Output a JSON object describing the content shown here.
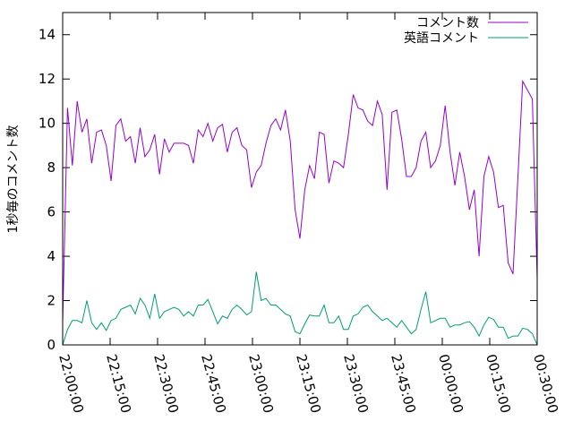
{
  "chart_data": {
    "type": "line",
    "title": "",
    "xlabel": "",
    "ylabel": "1秒毎のコメント数",
    "ylim": [
      0,
      15
    ],
    "yticks": [
      "0",
      "2",
      "4",
      "6",
      "8",
      "10",
      "12",
      "14"
    ],
    "x_range": [
      "22:00:00",
      "00:30:00"
    ],
    "x_sample_interval": "00:01:00",
    "xticks": [
      "22:00:00",
      "22:15:00",
      "22:30:00",
      "22:45:00",
      "23:00:00",
      "23:15:00",
      "23:30:00",
      "23:45:00",
      "00:00:00",
      "00:15:00",
      "00:30:00"
    ],
    "grid": false,
    "legend": "top-right",
    "series": [
      {
        "name": "コメント数",
        "color": "#9400d3",
        "values": [
          1.0,
          10.7,
          8.1,
          11.0,
          9.6,
          10.2,
          8.2,
          9.6,
          9.7,
          9.0,
          7.4,
          9.9,
          10.2,
          9.2,
          9.4,
          8.2,
          9.8,
          8.5,
          8.8,
          9.5,
          7.7,
          9.3,
          8.7,
          9.1,
          9.1,
          9.1,
          9.0,
          8.2,
          9.7,
          9.4,
          10.0,
          9.2,
          9.8,
          9.95,
          8.7,
          9.6,
          9.8,
          9.0,
          8.8,
          7.1,
          7.8,
          8.1,
          9.1,
          9.9,
          10.2,
          9.7,
          10.6,
          9.2,
          6.1,
          4.8,
          7.0,
          8.1,
          7.5,
          9.6,
          9.5,
          7.3,
          8.3,
          8.2,
          8.0,
          9.5,
          11.3,
          10.7,
          10.6,
          10.1,
          9.9,
          11.0,
          10.4,
          7.0,
          10.5,
          10.6,
          9.3,
          7.6,
          7.6,
          8.0,
          9.2,
          9.6,
          8.0,
          8.3,
          9.0,
          10.8,
          8.7,
          7.2,
          8.7,
          7.6,
          6.1,
          7.0,
          4.0,
          7.6,
          8.5,
          7.8,
          6.2,
          6.3,
          3.7,
          3.2,
          7.5,
          11.9,
          11.5,
          11.1,
          3.0
        ]
      },
      {
        "name": "英語コメント",
        "color": "#009e73",
        "values": [
          0.0,
          0.7,
          1.1,
          1.1,
          1.0,
          2.0,
          1.0,
          0.7,
          1.0,
          0.65,
          1.1,
          1.2,
          1.6,
          1.7,
          1.8,
          1.4,
          2.1,
          1.8,
          1.2,
          2.3,
          1.2,
          1.5,
          1.6,
          1.7,
          1.6,
          1.3,
          1.5,
          1.3,
          1.8,
          1.8,
          2.05,
          1.5,
          0.95,
          1.3,
          1.2,
          1.6,
          1.8,
          1.6,
          1.35,
          1.5,
          3.3,
          2.0,
          2.1,
          1.8,
          1.8,
          1.6,
          1.4,
          1.3,
          0.6,
          0.5,
          0.95,
          1.35,
          1.3,
          1.3,
          1.8,
          1.0,
          1.0,
          1.3,
          0.7,
          0.7,
          1.3,
          1.4,
          1.7,
          1.8,
          1.5,
          1.3,
          1.1,
          1.2,
          1.0,
          0.8,
          1.1,
          0.8,
          0.5,
          0.7,
          1.6,
          2.4,
          1.0,
          1.1,
          1.2,
          1.2,
          0.8,
          0.9,
          0.9,
          1.0,
          1.05,
          0.8,
          0.4,
          0.9,
          1.25,
          1.15,
          0.8,
          0.8,
          0.3,
          0.4,
          0.4,
          0.75,
          0.7,
          0.5,
          0.0
        ]
      }
    ]
  }
}
